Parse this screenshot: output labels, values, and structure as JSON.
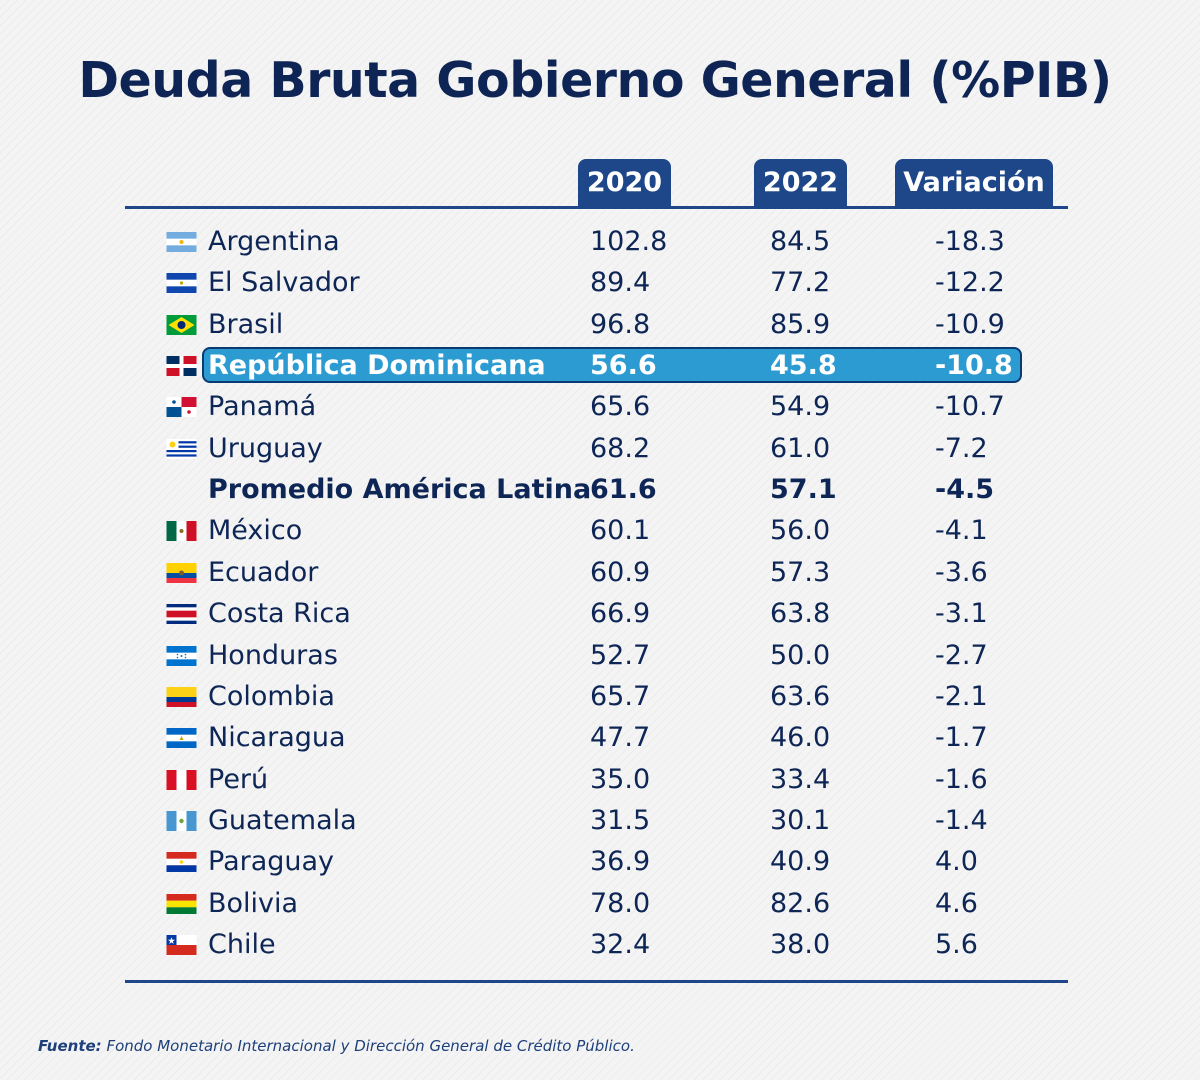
{
  "chart_data": {
    "type": "table",
    "title": "Deuda Bruta Gobierno General (%PIB)",
    "columns": [
      "2020",
      "2022",
      "Variación"
    ],
    "rows": [
      {
        "name": "Argentina",
        "flag": "argentina-flag",
        "v2020": "102.8",
        "v2022": "84.5",
        "variacion": "-18.3"
      },
      {
        "name": "El Salvador",
        "flag": "el-salvador-flag",
        "v2020": "89.4",
        "v2022": "77.2",
        "variacion": "-12.2"
      },
      {
        "name": "Brasil",
        "flag": "brazil-flag",
        "v2020": "96.8",
        "v2022": "85.9",
        "variacion": "-10.9"
      },
      {
        "name": "República Dominicana",
        "flag": "dominican-republic-flag",
        "v2020": "56.6",
        "v2022": "45.8",
        "variacion": "-10.8",
        "highlight": true
      },
      {
        "name": "Panamá",
        "flag": "panama-flag",
        "v2020": "65.6",
        "v2022": "54.9",
        "variacion": "-10.7"
      },
      {
        "name": "Uruguay",
        "flag": "uruguay-flag",
        "v2020": "68.2",
        "v2022": "61.0",
        "variacion": "-7.2"
      },
      {
        "name": "Promedio América Latina",
        "flag": "",
        "v2020": "61.6",
        "v2022": "57.1",
        "variacion": "-4.5",
        "bold": true
      },
      {
        "name": "México",
        "flag": "mexico-flag",
        "v2020": "60.1",
        "v2022": "56.0",
        "variacion": "-4.1"
      },
      {
        "name": "Ecuador",
        "flag": "ecuador-flag",
        "v2020": "60.9",
        "v2022": "57.3",
        "variacion": "-3.6"
      },
      {
        "name": "Costa Rica",
        "flag": "costa-rica-flag",
        "v2020": "66.9",
        "v2022": "63.8",
        "variacion": "-3.1"
      },
      {
        "name": "Honduras",
        "flag": "honduras-flag",
        "v2020": "52.7",
        "v2022": "50.0",
        "variacion": "-2.7"
      },
      {
        "name": "Colombia",
        "flag": "colombia-flag",
        "v2020": "65.7",
        "v2022": "63.6",
        "variacion": "-2.1"
      },
      {
        "name": "Nicaragua",
        "flag": "nicaragua-flag",
        "v2020": "47.7",
        "v2022": "46.0",
        "variacion": "-1.7"
      },
      {
        "name": "Perú",
        "flag": "peru-flag",
        "v2020": "35.0",
        "v2022": "33.4",
        "variacion": "-1.6"
      },
      {
        "name": "Guatemala",
        "flag": "guatemala-flag",
        "v2020": "31.5",
        "v2022": "30.1",
        "variacion": "-1.4"
      },
      {
        "name": "Paraguay",
        "flag": "paraguay-flag",
        "v2020": "36.9",
        "v2022": "40.9",
        "variacion": "4.0"
      },
      {
        "name": "Bolivia",
        "flag": "bolivia-flag",
        "v2020": "78.0",
        "v2022": "82.6",
        "variacion": "4.6"
      },
      {
        "name": "Chile",
        "flag": "chile-flag",
        "v2020": "32.4",
        "v2022": "38.0",
        "variacion": "5.6"
      }
    ]
  },
  "source": {
    "label": "Fuente:",
    "text": " Fondo Monetario Internacional y Dirección General de Crédito Público."
  },
  "colors": {
    "header_bg": "#1d4788",
    "highlight_bg": "#2b9bd1",
    "text": "#0e2656"
  }
}
